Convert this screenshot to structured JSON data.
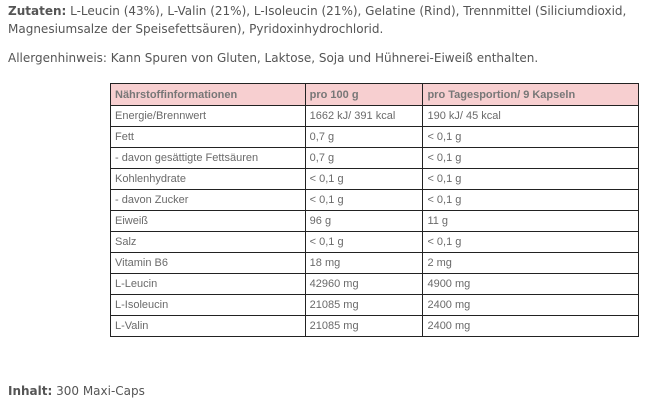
{
  "ingredients": {
    "label": "Zutaten:",
    "text": " L-Leucin (43%), L-Valin (21%), L-Isoleucin (21%), Gelatine (Rind), Trennmittel (Siliciumdioxid, Magnesiumsalze der Speisefettsäuren), Pyridoxinhydrochlorid."
  },
  "allergen": {
    "text": "Allergenhinweis: Kann Spuren von Gluten, Laktose, Soja und Hühnerei-Eiweiß enthalten."
  },
  "nutrition_table": {
    "header_color": "#f7cfd0",
    "headers": [
      "Nährstoffinformationen",
      "pro 100 g",
      "pro Tagesportion/ 9 Kapseln"
    ],
    "rows": [
      [
        "Energie/Brennwert",
        "1662 kJ/ 391 kcal",
        "190 kJ/ 45 kcal"
      ],
      [
        "Fett",
        "0,7 g",
        "< 0,1 g"
      ],
      [
        "- davon gesättigte Fettsäuren",
        "0,7 g",
        "< 0,1 g"
      ],
      [
        "Kohlenhydrate",
        "< 0,1 g",
        "< 0,1 g"
      ],
      [
        "- davon Zucker",
        "< 0,1 g",
        "< 0,1 g"
      ],
      [
        "Eiweiß",
        "96 g",
        "11 g"
      ],
      [
        "Salz",
        "< 0,1 g",
        "< 0,1 g"
      ],
      [
        "Vitamin B6",
        "18 mg",
        "2 mg"
      ],
      [
        "L-Leucin",
        "42960 mg",
        "4900 mg"
      ],
      [
        "L-Isoleucin",
        "21085 mg",
        "2400 mg"
      ],
      [
        "L-Valin",
        "21085 mg",
        "2400 mg"
      ]
    ]
  },
  "contents": {
    "label": "Inhalt:",
    "text": " 300 Maxi-Caps"
  }
}
